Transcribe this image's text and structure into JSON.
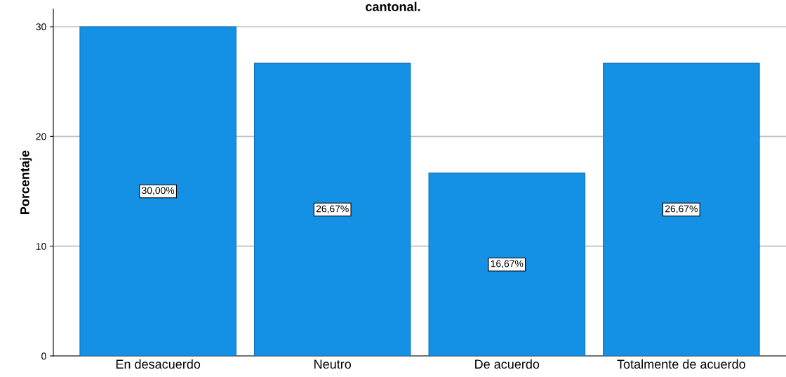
{
  "chart_data": {
    "type": "bar",
    "title": "cantonal.",
    "ylabel": "Porcentaje",
    "categories": [
      "En desacuerdo",
      "Neutro",
      "De acuerdo",
      "Totalmente de acuerdo"
    ],
    "values": [
      30,
      26.67,
      16.67,
      26.67
    ],
    "value_labels": [
      "30,00%",
      "26,67%",
      "16,67%",
      "26,67%"
    ],
    "color": "#1490e4",
    "ylim": [
      0,
      31.6
    ],
    "yticks": [
      0,
      10,
      20,
      30
    ],
    "grid": "y"
  }
}
